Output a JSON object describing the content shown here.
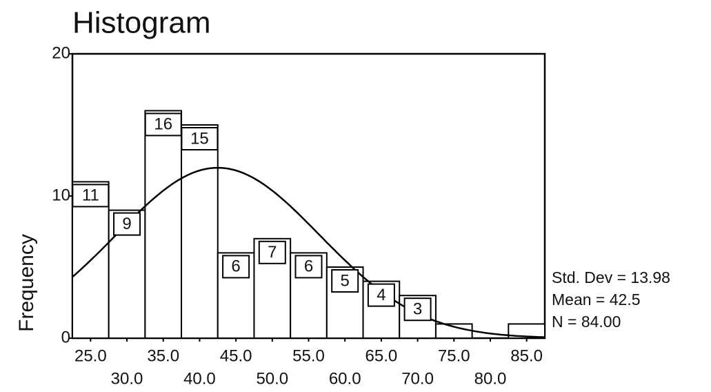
{
  "chart_data": {
    "type": "histogram",
    "title": "Histogram",
    "y_label": "Frequency",
    "bins": [
      22.5,
      27.5,
      32.5,
      37.5,
      42.5,
      47.5,
      52.5,
      57.5,
      62.5,
      67.5,
      72.5,
      77.5,
      82.5,
      87.5
    ],
    "values": [
      11,
      9,
      16,
      15,
      6,
      7,
      6,
      5,
      4,
      3,
      1,
      0,
      1
    ],
    "value_labels": [
      "11",
      "9",
      "16",
      "15",
      "6",
      "7",
      "6",
      "5",
      "4",
      "3",
      null,
      null,
      null
    ],
    "xlim": [
      22.5,
      87.5
    ],
    "xticks": [
      {
        "value": 25,
        "label": "25.0"
      },
      {
        "value": 30,
        "label": "30.0"
      },
      {
        "value": 35,
        "label": "35.0"
      },
      {
        "value": 40,
        "label": "40.0"
      },
      {
        "value": 45,
        "label": "45.0"
      },
      {
        "value": 50,
        "label": "50.0"
      },
      {
        "value": 55,
        "label": "55.0"
      },
      {
        "value": 60,
        "label": "60.0"
      },
      {
        "value": 65,
        "label": "65.0"
      },
      {
        "value": 70,
        "label": "70.0"
      },
      {
        "value": 75,
        "label": "75.0"
      },
      {
        "value": 80,
        "label": "80.0"
      },
      {
        "value": 85,
        "label": "85.0"
      }
    ],
    "ylim": [
      0,
      20
    ],
    "yticks": [
      0,
      10,
      20
    ],
    "color": "#ffffff",
    "stats": [
      "Std. Dev = 13.98",
      "Mean = 42.5",
      "N = 84.00"
    ],
    "normal_curve": {
      "mean": 42.5,
      "sd": 13.98,
      "n": 84
    }
  }
}
